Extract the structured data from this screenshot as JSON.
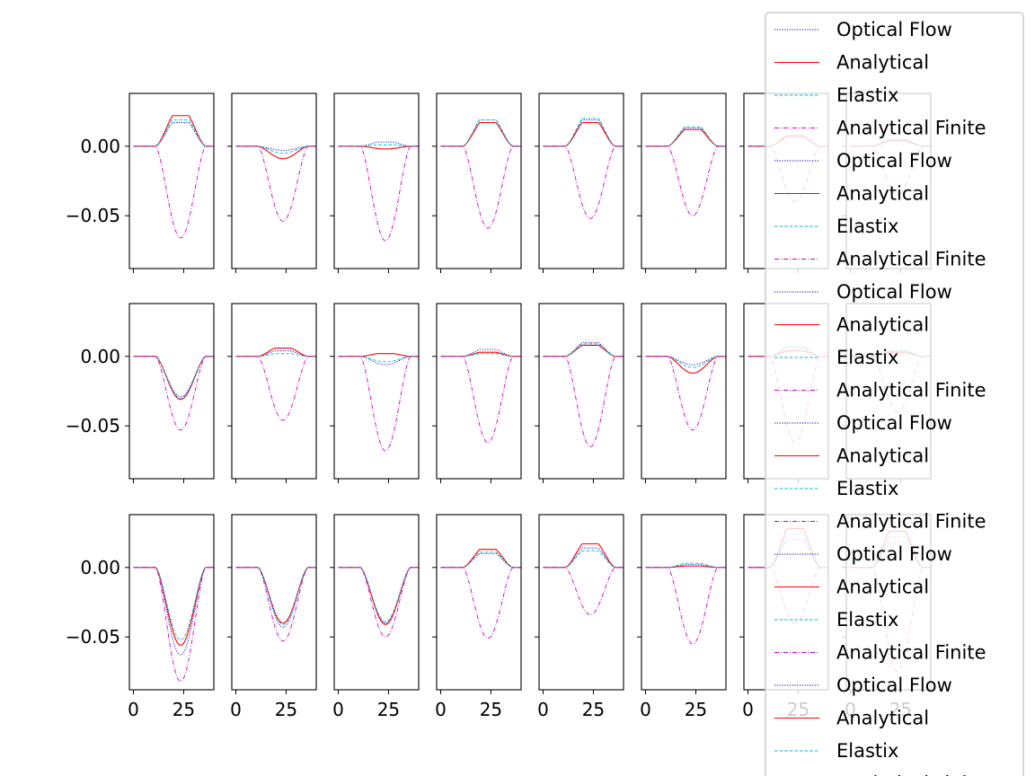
{
  "figure": {
    "legend_placement": "right",
    "legend_colors": {
      "optical_flow": "#0000cc",
      "analytical": "#ff0000",
      "elastix": "#00bcd4",
      "analytical_finite": "#cc00cc"
    }
  },
  "chart_data": {
    "type": "line",
    "layout": {
      "rows": 3,
      "cols": 8
    },
    "sharey": true,
    "sharex": true,
    "ylim": [
      -0.088,
      0.038
    ],
    "xlim": [
      -2,
      40
    ],
    "yticks": [
      0.0,
      -0.05
    ],
    "ytick_labels": [
      "0.00",
      "−0.05"
    ],
    "xticks": [
      0,
      25
    ],
    "xtick_labels": [
      "0",
      "25"
    ],
    "grid": false,
    "series_names": [
      "Optical Flow",
      "Analytical",
      "Elastix",
      "Analytical Finite"
    ],
    "series_styles": {
      "Optical Flow": {
        "color": "#0000cc",
        "dash": "dotted"
      },
      "Analytical": {
        "color": "#ff0000",
        "dash": "solid"
      },
      "Elastix": {
        "color": "#00bcd4",
        "dash": "dashed"
      },
      "Analytical Finite": {
        "color": "#cc00cc",
        "dash": "dashdot"
      }
    },
    "legend_labels": [
      "Optical Flow",
      "Analytical",
      "Elastix",
      "Analytical Finite",
      "Optical Flow",
      "Analytical",
      "Elastix",
      "Analytical Finite",
      "Optical Flow",
      "Analytical",
      "Elastix",
      "Analytical Finite",
      "Optical Flow",
      "Analytical",
      "Elastix",
      "Analytical Finite",
      "Optical Flow",
      "Analytical",
      "Elastix",
      "Analytical Finite",
      "Optical Flow",
      "Analytical",
      "Elastix",
      "Analytical Finite"
    ],
    "panels": [
      {
        "row": 0,
        "col": 0,
        "peak": {
          "Optical Flow": 0.017,
          "Analytical": 0.022,
          "Elastix": 0.019,
          "Analytical Finite": -0.066
        }
      },
      {
        "row": 0,
        "col": 1,
        "peak": {
          "Optical Flow": -0.003,
          "Analytical": -0.009,
          "Elastix": -0.005,
          "Analytical Finite": -0.054
        }
      },
      {
        "row": 0,
        "col": 2,
        "peak": {
          "Optical Flow": 0.003,
          "Analytical": -0.002,
          "Elastix": 0.001,
          "Analytical Finite": -0.068
        }
      },
      {
        "row": 0,
        "col": 3,
        "peak": {
          "Optical Flow": 0.019,
          "Analytical": 0.017,
          "Elastix": 0.019,
          "Analytical Finite": -0.059
        }
      },
      {
        "row": 0,
        "col": 4,
        "peak": {
          "Optical Flow": 0.019,
          "Analytical": 0.017,
          "Elastix": 0.02,
          "Analytical Finite": -0.052
        }
      },
      {
        "row": 0,
        "col": 5,
        "peak": {
          "Optical Flow": 0.013,
          "Analytical": 0.012,
          "Elastix": 0.014,
          "Analytical Finite": -0.05
        }
      },
      {
        "row": 0,
        "col": 6,
        "peak": {
          "Optical Flow": 0.008,
          "Analytical": 0.007,
          "Elastix": 0.008,
          "Analytical Finite": -0.04
        }
      },
      {
        "row": 0,
        "col": 7,
        "peak": {
          "Optical Flow": 0.005,
          "Analytical": 0.004,
          "Elastix": 0.005,
          "Analytical Finite": -0.035
        }
      },
      {
        "row": 1,
        "col": 0,
        "peak": {
          "Optical Flow": -0.029,
          "Analytical": -0.031,
          "Elastix": -0.03,
          "Analytical Finite": -0.053
        }
      },
      {
        "row": 1,
        "col": 1,
        "peak": {
          "Optical Flow": 0.004,
          "Analytical": 0.006,
          "Elastix": 0.002,
          "Analytical Finite": -0.046
        }
      },
      {
        "row": 1,
        "col": 2,
        "peak": {
          "Optical Flow": -0.006,
          "Analytical": 0.002,
          "Elastix": -0.004,
          "Analytical Finite": -0.068
        }
      },
      {
        "row": 1,
        "col": 3,
        "peak": {
          "Optical Flow": 0.005,
          "Analytical": 0.003,
          "Elastix": 0.002,
          "Analytical Finite": -0.062
        }
      },
      {
        "row": 1,
        "col": 4,
        "peak": {
          "Optical Flow": 0.01,
          "Analytical": 0.008,
          "Elastix": 0.009,
          "Analytical Finite": -0.065
        }
      },
      {
        "row": 1,
        "col": 5,
        "peak": {
          "Optical Flow": -0.006,
          "Analytical": -0.012,
          "Elastix": -0.008,
          "Analytical Finite": -0.053
        }
      },
      {
        "row": 1,
        "col": 6,
        "peak": {
          "Optical Flow": 0.007,
          "Analytical": 0.004,
          "Elastix": 0.006,
          "Analytical Finite": -0.062
        }
      },
      {
        "row": 1,
        "col": 7,
        "peak": {
          "Optical Flow": 0.004,
          "Analytical": 0.003,
          "Elastix": 0.004,
          "Analytical Finite": -0.04
        }
      },
      {
        "row": 2,
        "col": 0,
        "peak": {
          "Optical Flow": -0.063,
          "Analytical": -0.056,
          "Elastix": -0.052,
          "Analytical Finite": -0.082
        }
      },
      {
        "row": 2,
        "col": 1,
        "peak": {
          "Optical Flow": -0.043,
          "Analytical": -0.04,
          "Elastix": -0.041,
          "Analytical Finite": -0.053
        }
      },
      {
        "row": 2,
        "col": 2,
        "peak": {
          "Optical Flow": -0.04,
          "Analytical": -0.041,
          "Elastix": -0.039,
          "Analytical Finite": -0.05
        }
      },
      {
        "row": 2,
        "col": 3,
        "peak": {
          "Optical Flow": 0.01,
          "Analytical": 0.013,
          "Elastix": 0.011,
          "Analytical Finite": -0.051
        }
      },
      {
        "row": 2,
        "col": 4,
        "peak": {
          "Optical Flow": 0.014,
          "Analytical": 0.017,
          "Elastix": 0.012,
          "Analytical Finite": -0.034
        }
      },
      {
        "row": 2,
        "col": 5,
        "peak": {
          "Optical Flow": 0.002,
          "Analytical": 0.001,
          "Elastix": 0.003,
          "Analytical Finite": -0.055
        }
      },
      {
        "row": 2,
        "col": 6,
        "peak": {
          "Optical Flow": 0.02,
          "Analytical": 0.028,
          "Elastix": 0.024,
          "Analytical Finite": -0.04
        }
      },
      {
        "row": 2,
        "col": 7,
        "peak": {
          "Optical Flow": 0.018,
          "Analytical": 0.026,
          "Elastix": 0.022,
          "Analytical Finite": -0.075
        }
      }
    ]
  }
}
